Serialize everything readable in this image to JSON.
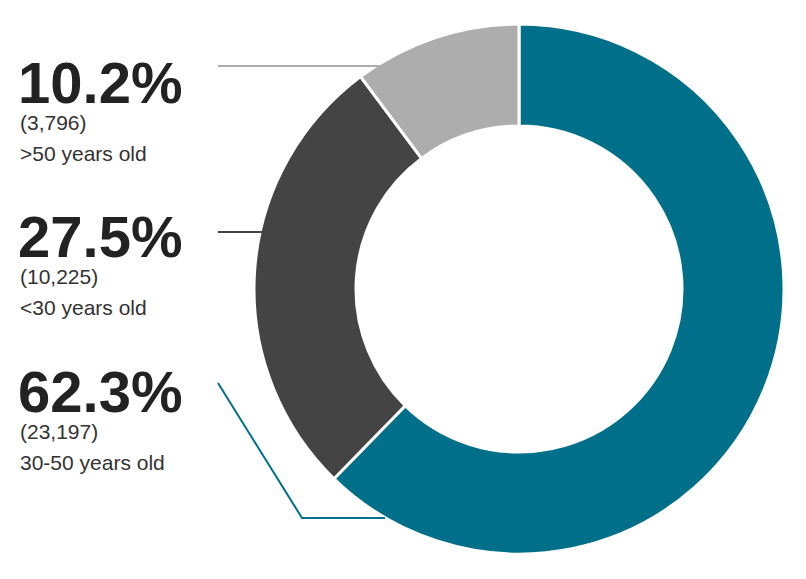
{
  "chart_data": {
    "type": "pie",
    "categories": [
      "30-50 years old",
      "<30 years old",
      ">50 years old"
    ],
    "values": [
      62.3,
      27.5,
      10.2
    ],
    "value_labels": [
      "62.3%",
      "27.5%",
      "10.2%"
    ],
    "counts": [
      23197,
      10225,
      3796
    ],
    "count_labels": [
      "(23,197)",
      "(10,225)",
      "(3,796)"
    ],
    "colors": [
      "#006f8a",
      "#444444",
      "#adadad"
    ],
    "data_labels": true
  }
}
